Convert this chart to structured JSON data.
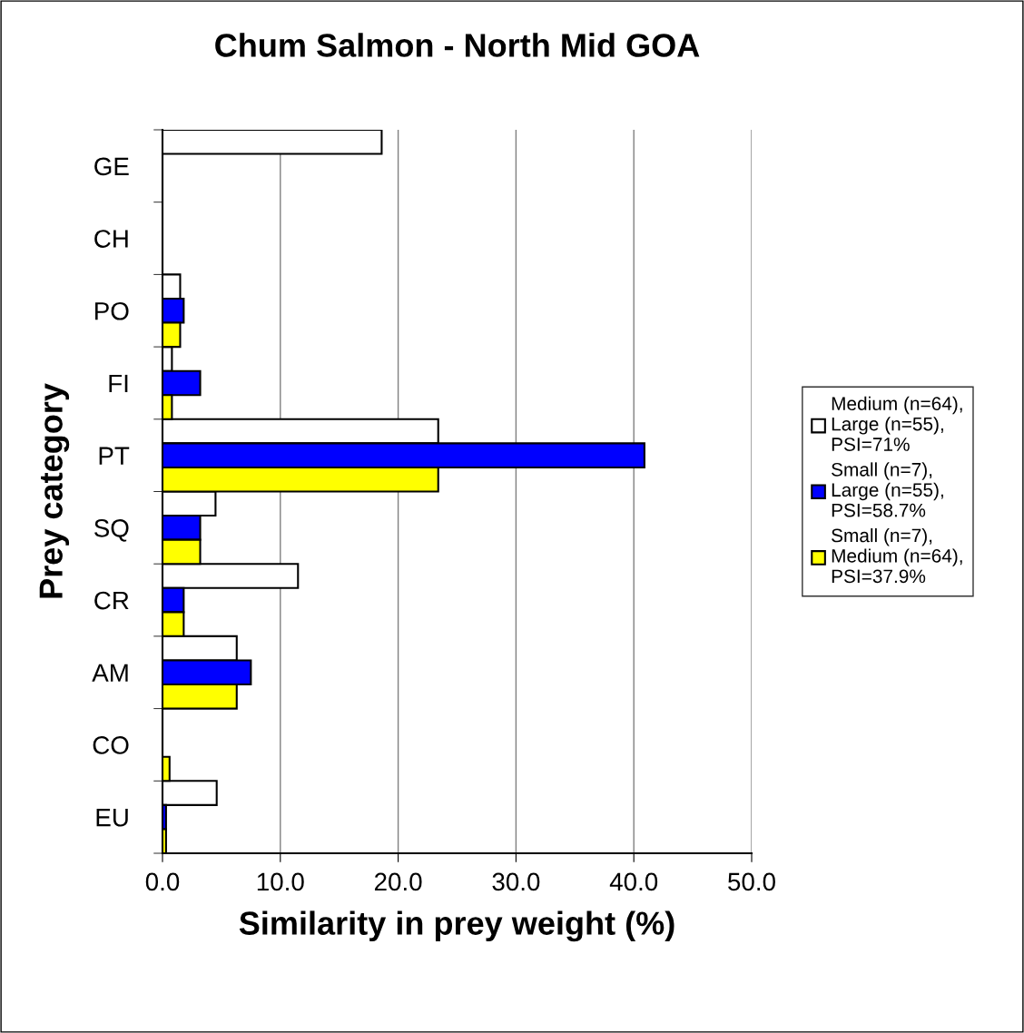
{
  "chart_data": {
    "type": "bar",
    "orientation": "horizontal",
    "title": "Chum Salmon - North Mid GOA",
    "xlabel": "Similarity in prey weight (%)",
    "ylabel": "Prey category",
    "categories": [
      "GE",
      "CH",
      "PO",
      "FI",
      "PT",
      "SQ",
      "CR",
      "AM",
      "CO",
      "EU"
    ],
    "series": [
      {
        "name": "Medium (n=64),\nLarge (n=55),\nPSI=71%",
        "color": "#ffffff",
        "values": [
          18.6,
          0,
          1.5,
          0.8,
          23.4,
          4.5,
          11.5,
          6.3,
          0,
          4.6
        ]
      },
      {
        "name": "Small (n=7),\nLarge (n=55),\nPSI=58.7%",
        "color": "#0000ff",
        "values": [
          0,
          0,
          1.8,
          3.2,
          40.9,
          3.2,
          1.8,
          7.5,
          0,
          0.3
        ]
      },
      {
        "name": "Small (n=7),\nMedium (n=64),\nPSI=37.9%",
        "color": "#ffff00",
        "values": [
          0,
          0,
          1.5,
          0.8,
          23.4,
          3.2,
          1.8,
          6.3,
          0.6,
          0.3
        ]
      }
    ],
    "xlim": [
      0,
      50
    ],
    "xticks": [
      {
        "value": 0,
        "label": "0.0"
      },
      {
        "value": 10,
        "label": "10.0"
      },
      {
        "value": 20,
        "label": "20.0"
      },
      {
        "value": 30,
        "label": "30.0"
      },
      {
        "value": 40,
        "label": "40.0"
      },
      {
        "value": 50,
        "label": "50.0"
      }
    ],
    "grid": "x",
    "legend": "right"
  }
}
